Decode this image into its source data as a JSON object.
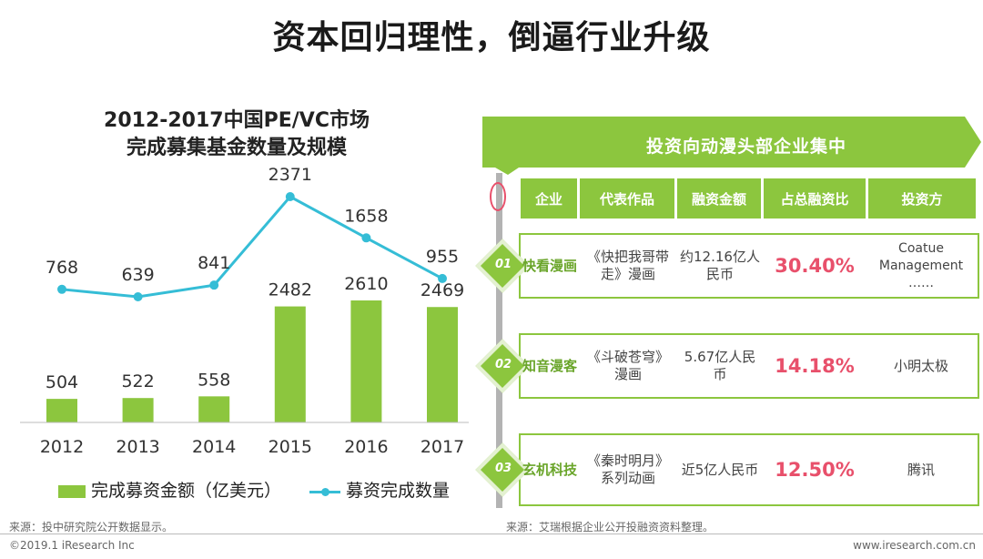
{
  "page_title": "资本回归理性，倒逼行业升级",
  "chart_data": {
    "type": "bar",
    "title_lines": [
      "2012-2017中国PE/VC市场",
      "完成募集基金数量及规模"
    ],
    "categories": [
      "2012",
      "2013",
      "2014",
      "2015",
      "2016",
      "2017"
    ],
    "series": [
      {
        "name": "完成募资金额（亿美元）",
        "type": "bar",
        "color": "#8cc63e",
        "values": [
          504,
          522,
          558,
          2482,
          2610,
          2469
        ]
      },
      {
        "name": "募资完成数量",
        "type": "line",
        "color": "#35bdd6",
        "values": [
          768,
          639,
          841,
          2371,
          1658,
          955
        ]
      }
    ],
    "legend_position": "bottom",
    "grid": false
  },
  "left_source": "来源：投中研究院公开数据显示。",
  "right_panel": {
    "banner": "投资向动漫头部企业集中",
    "headers": [
      "企业",
      "代表作品",
      "融资金额",
      "占总融资比",
      "投资方"
    ],
    "rows": [
      {
        "num": "01",
        "company": "快看漫画",
        "work": "《快把我哥带走》漫画",
        "amount": "约12.16亿人民币",
        "share": "30.40%",
        "investor": "Coatue Management ……"
      },
      {
        "num": "02",
        "company": "知音漫客",
        "work": "《斗破苍穹》漫画",
        "amount": "5.67亿人民币",
        "share": "14.18%",
        "investor": "小明太极"
      },
      {
        "num": "03",
        "company": "玄机科技",
        "work": "《秦时明月》系列动画",
        "amount": "近5亿人民币",
        "share": "12.50%",
        "investor": "腾讯"
      }
    ],
    "source": "来源：艾瑞根据企业公开投融资资料整理。"
  },
  "footer": {
    "copyright": "©2019.1 iResearch Inc",
    "website": "www.iresearch.com.cn"
  },
  "colors": {
    "accent_green": "#8cc63e",
    "line_blue": "#35bdd6",
    "highlight_red": "#e8506b"
  }
}
